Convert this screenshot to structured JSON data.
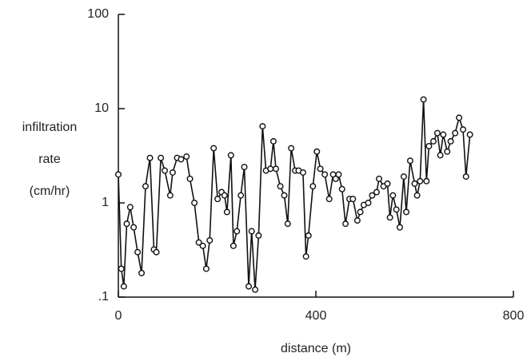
{
  "chart_data": {
    "type": "line",
    "xlabel": "distance (m)",
    "ylabel_lines": [
      "infiltration",
      "rate",
      "(cm/hr)"
    ],
    "ylog": true,
    "xlim": [
      0,
      800
    ],
    "xticks": [
      0,
      400,
      800
    ],
    "ylim": [
      0.1,
      100
    ],
    "yticks": [
      {
        "value": 0.1,
        "label": ".1"
      },
      1,
      10,
      100
    ],
    "color": "#111111",
    "series": [
      {
        "x": [
          0,
          6,
          11,
          17,
          24,
          31,
          39,
          47,
          55,
          64,
          72,
          77,
          86,
          94,
          105,
          110,
          119,
          127,
          138,
          145,
          154,
          163,
          171,
          178,
          185,
          193,
          201,
          209,
          215,
          220,
          228,
          233,
          240,
          248,
          255,
          264,
          270,
          277,
          284,
          292,
          299,
          308,
          314,
          319,
          328,
          336,
          343,
          350,
          358,
          365,
          374,
          380,
          385,
          394,
          402,
          409,
          418,
          427,
          435,
          440,
          446,
          453,
          460,
          468,
          475,
          484,
          490,
          497,
          506,
          514,
          523,
          528,
          537,
          545,
          550,
          556,
          563,
          570,
          578,
          583,
          591,
          600,
          605,
          611,
          618,
          624,
          629,
          638,
          646,
          652,
          658,
          666,
          673,
          682,
          690,
          698,
          704,
          712
        ],
        "values": [
          2.0,
          0.2,
          0.13,
          0.6,
          0.9,
          0.55,
          0.3,
          0.18,
          1.5,
          3.0,
          0.32,
          0.3,
          3.0,
          2.2,
          1.2,
          2.1,
          3.0,
          2.9,
          3.1,
          1.8,
          1.0,
          0.38,
          0.35,
          0.2,
          0.4,
          3.8,
          1.1,
          1.3,
          1.2,
          0.8,
          3.2,
          0.35,
          0.5,
          1.2,
          2.4,
          0.13,
          0.5,
          0.12,
          0.45,
          6.5,
          2.2,
          2.3,
          4.5,
          2.3,
          1.5,
          1.2,
          0.6,
          3.8,
          2.2,
          2.2,
          2.1,
          0.27,
          0.45,
          1.5,
          3.5,
          2.3,
          2.0,
          1.1,
          2.0,
          1.8,
          2.0,
          1.4,
          0.6,
          1.1,
          1.1,
          0.65,
          0.8,
          0.95,
          1.0,
          1.2,
          1.3,
          1.8,
          1.5,
          1.6,
          0.7,
          1.2,
          0.85,
          0.55,
          1.9,
          0.8,
          2.8,
          1.6,
          1.2,
          1.7,
          12.5,
          1.7,
          4.0,
          4.5,
          5.5,
          3.2,
          5.3,
          3.5,
          4.5,
          5.5,
          8.0,
          6.0,
          1.9,
          5.3
        ]
      }
    ]
  }
}
